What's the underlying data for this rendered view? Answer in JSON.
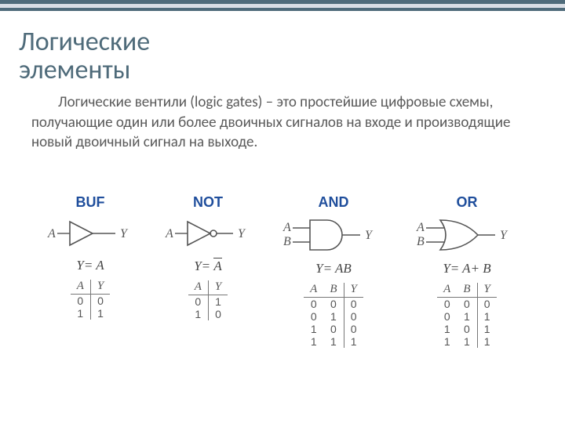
{
  "decor_bars": {
    "bar1_color": "#4f6b7a",
    "bar2_color": "#d9dde4",
    "bar3_color": "#4f6b7a",
    "bar1_h": 5,
    "bar2_h": 5,
    "bar3_h": 4
  },
  "title": {
    "line1": "Логические",
    "line2": "элементы",
    "color": "#4f6b7a",
    "fontsize": 34
  },
  "body": {
    "text": "Логические  вентили  (logic  gates) – это  простейшие цифровые  схемы, получающие  один  или  более  двоичных сигналов  на  входе  и производящие  новый  двоичный сигнал  на  выходе.",
    "color": "#5a5a5a",
    "fontsize": 19
  },
  "gates": {
    "name_color": "#1f4e9c",
    "symbol_stroke": "#555555",
    "text_color": "#555555",
    "items": [
      {
        "name": "BUF",
        "type": "buffer",
        "inputs": [
          "A"
        ],
        "output": "Y",
        "equation_lhs": "Y=",
        "equation_rhs": "A",
        "overbar": false,
        "truth": {
          "cols": [
            "A",
            "Y"
          ],
          "rows": [
            [
              "0",
              "0"
            ],
            [
              "1",
              "1"
            ]
          ]
        }
      },
      {
        "name": "NOT",
        "type": "not",
        "inputs": [
          "A"
        ],
        "output": "Y",
        "equation_lhs": "Y=",
        "equation_rhs": "A",
        "overbar": true,
        "truth": {
          "cols": [
            "A",
            "Y"
          ],
          "rows": [
            [
              "0",
              "1"
            ],
            [
              "1",
              "0"
            ]
          ]
        }
      },
      {
        "name": "AND",
        "type": "and",
        "inputs": [
          "A",
          "B"
        ],
        "output": "Y",
        "equation_lhs": "Y=",
        "equation_rhs": "AB",
        "overbar": false,
        "truth": {
          "cols": [
            "A",
            "B",
            "Y"
          ],
          "rows": [
            [
              "0",
              "0",
              "0"
            ],
            [
              "0",
              "1",
              "0"
            ],
            [
              "1",
              "0",
              "0"
            ],
            [
              "1",
              "1",
              "1"
            ]
          ]
        }
      },
      {
        "name": "OR",
        "type": "or",
        "inputs": [
          "A",
          "B"
        ],
        "output": "Y",
        "equation_lhs": "Y=",
        "equation_rhs": "A+ B",
        "overbar": false,
        "truth": {
          "cols": [
            "A",
            "B",
            "Y"
          ],
          "rows": [
            [
              "0",
              "0",
              "0"
            ],
            [
              "0",
              "1",
              "1"
            ],
            [
              "1",
              "0",
              "1"
            ],
            [
              "1",
              "1",
              "1"
            ]
          ]
        }
      }
    ]
  }
}
